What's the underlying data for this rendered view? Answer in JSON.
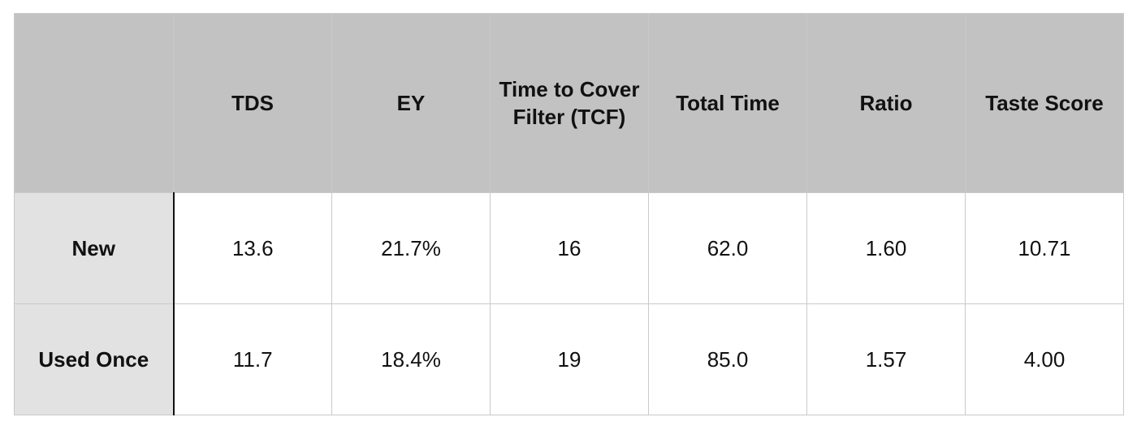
{
  "chart_data": {
    "type": "table",
    "columns": [
      "",
      "TDS",
      "EY",
      "Time to Cover Filter (TCF)",
      "Total Time",
      "Ratio",
      "Taste Score"
    ],
    "rows": [
      {
        "label": "New",
        "cells": [
          "13.6",
          "21.7%",
          "16",
          "62.0",
          "1.60",
          "10.71"
        ]
      },
      {
        "label": "Used Once",
        "cells": [
          "11.7",
          "18.4%",
          "19",
          "85.0",
          "1.57",
          "4.00"
        ]
      }
    ]
  },
  "colors": {
    "header_bg": "#c2c2c2",
    "row_label_bg": "#e2e2e2",
    "cell_bg": "#ffffff",
    "grid": "#c9c9c9"
  }
}
